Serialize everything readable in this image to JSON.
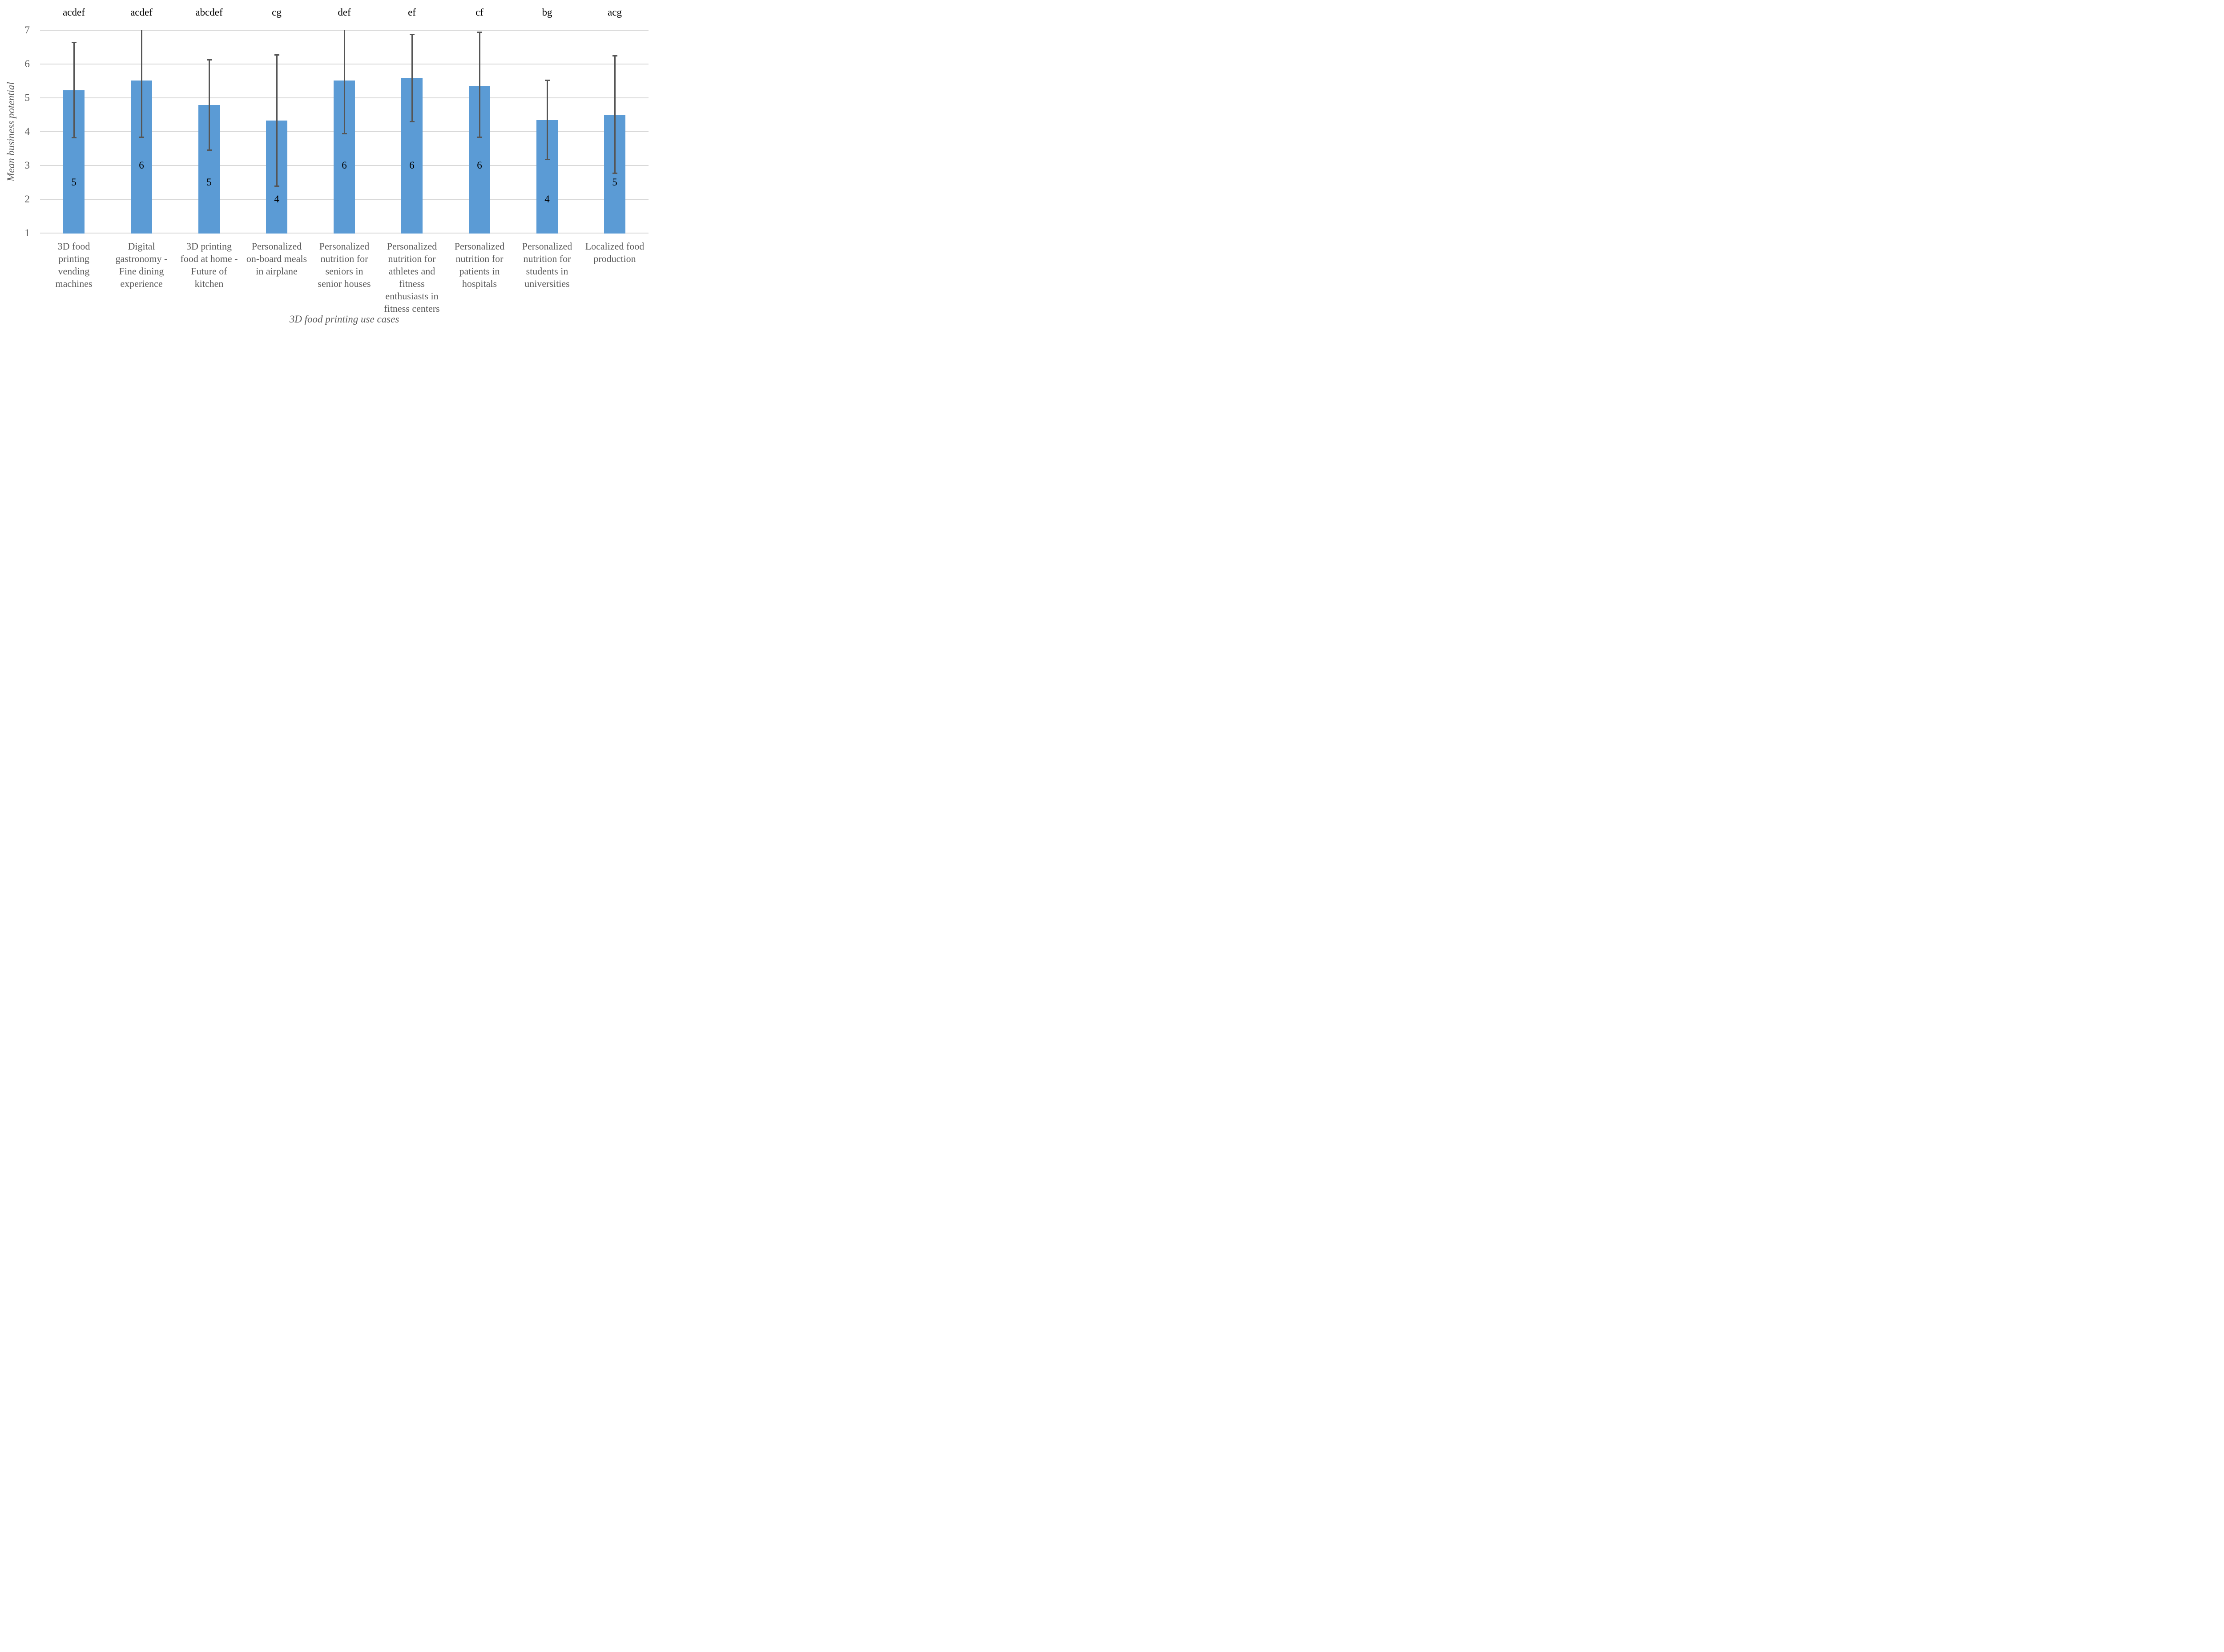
{
  "chart_data": {
    "type": "bar",
    "title": "",
    "xlabel": "3D food printing use cases",
    "ylabel": "Mean business potential",
    "ylim": [
      1,
      7
    ],
    "yticks": [
      "1",
      "2",
      "3",
      "4",
      "5",
      "6",
      "7"
    ],
    "grid": true,
    "legend": "none",
    "colors": {
      "bar": "#5B9BD5",
      "error_bar": "#555555",
      "gridline": "#D9D9D9",
      "axis_text": "#595959",
      "annotation_text": "#000000"
    },
    "annotation_note": "letters above bars are significance groups; number inside bar is the median rating",
    "categories": [
      {
        "letters": "acdef",
        "label": "3D food printing vending machines",
        "label_lines": [
          "3D food",
          "printing",
          "vending",
          "machines"
        ],
        "mean": 5.23,
        "median": 5,
        "err_low": 3.82,
        "err_high": 6.64
      },
      {
        "letters": "acdef",
        "label": "Digital gastronomy - Fine dining experience",
        "label_lines": [
          "Digital",
          "gastronomy -",
          "Fine dining",
          "experience"
        ],
        "mean": 5.51,
        "median": 6,
        "err_low": 3.83,
        "err_high": 7.0
      },
      {
        "letters": "abcdef",
        "label": "3D printing food at home - Future of kitchen",
        "label_lines": [
          "3D printing",
          "food at home -",
          "Future of",
          "kitchen"
        ],
        "mean": 4.79,
        "median": 5,
        "err_low": 3.46,
        "err_high": 6.13
      },
      {
        "letters": "cg",
        "label": "Personalized on-board meals in airplane",
        "label_lines": [
          "Personalized",
          "on-board meals",
          "in airplane"
        ],
        "mean": 4.33,
        "median": 4,
        "err_low": 2.39,
        "err_high": 6.27
      },
      {
        "letters": "def",
        "label": "Personalized nutrition for seniors in senior houses",
        "label_lines": [
          "Personalized",
          "nutrition for",
          "seniors in",
          "senior houses"
        ],
        "mean": 5.51,
        "median": 6,
        "err_low": 3.94,
        "err_high": 7.0
      },
      {
        "letters": "ef",
        "label": "Personalized nutrition for athletes and fitness enthusiasts in fitness centers",
        "label_lines": [
          "Personalized",
          "nutrition for",
          "athletes and",
          "fitness",
          "enthusiasts in",
          "fitness centers"
        ],
        "mean": 5.59,
        "median": 6,
        "err_low": 4.3,
        "err_high": 6.87
      },
      {
        "letters": "cf",
        "label": "Personalized nutrition for patients in hospitals",
        "label_lines": [
          "Personalized",
          "nutrition for",
          "patients in",
          "hospitals"
        ],
        "mean": 5.35,
        "median": 6,
        "err_low": 3.83,
        "err_high": 6.94
      },
      {
        "letters": "bg",
        "label": "Personalized nutrition for students in universities",
        "label_lines": [
          "Personalized",
          "nutrition for",
          "students in",
          "universities"
        ],
        "mean": 4.34,
        "median": 4,
        "err_low": 3.18,
        "err_high": 5.52
      },
      {
        "letters": "acg",
        "label": "Localized food production",
        "label_lines": [
          "Localized food",
          "production"
        ],
        "mean": 4.5,
        "median": 5,
        "err_low": 2.77,
        "err_high": 6.25
      }
    ]
  }
}
